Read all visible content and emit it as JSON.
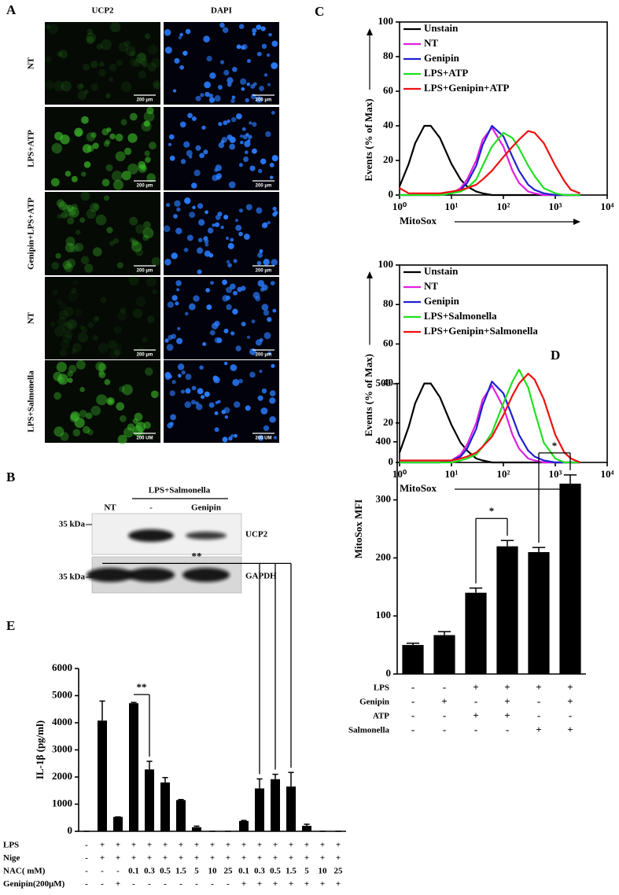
{
  "panel_a": {
    "label": "A",
    "columns": [
      "UCP2",
      "DAPI"
    ],
    "rows": [
      {
        "name": "NT",
        "scale": [
          "200 μm",
          "200 μm"
        ]
      },
      {
        "name": "LPS+ATP",
        "scale": [
          "200 μm",
          "200 μm"
        ]
      },
      {
        "name": "Genipin+LPS+ATP",
        "scale": [
          "200 μm",
          "200 μm"
        ]
      },
      {
        "name": "NT",
        "scale": [
          "200 μm",
          "200 μm"
        ]
      },
      {
        "name": "LPS+Salmonella",
        "scale": [
          "200 UM",
          "200 UM"
        ]
      }
    ]
  },
  "panel_b": {
    "label": "B",
    "group": "LPS+Salmonella",
    "lanes": [
      "NT",
      "-",
      "Genipin"
    ],
    "bands": [
      {
        "marker": "35 kDa",
        "name": "UCP2"
      },
      {
        "marker": "35 kDa",
        "name": "GAPDH"
      }
    ]
  },
  "chart_data": [
    {
      "type": "line",
      "label": "C",
      "xlabel": "MitoSox",
      "ylabel": "Events (% of Max)",
      "log_x": true,
      "legend": "upper left",
      "xlim": [
        1,
        10000
      ],
      "xticks": [
        {
          "value": 1,
          "label": "10⁰"
        },
        {
          "value": 10,
          "label": "10¹"
        },
        {
          "value": 100,
          "label": "10²"
        },
        {
          "value": 1000,
          "label": "10³"
        },
        {
          "value": 10000,
          "label": "10⁴"
        }
      ],
      "ylim": [
        0,
        100
      ],
      "yticks": [
        0,
        20,
        40,
        60,
        80,
        100
      ],
      "x": [
        1,
        1.5,
        2,
        3,
        4,
        6,
        10,
        15,
        20,
        30,
        40,
        60,
        100,
        150,
        200,
        300,
        400,
        600,
        1000,
        1500,
        2000,
        3000
      ],
      "series": [
        {
          "name": "Unstain",
          "color": "#000000",
          "values": [
            5,
            18,
            30,
            40,
            40,
            33,
            18,
            9,
            5,
            2,
            1,
            0,
            0,
            0,
            0,
            0,
            0,
            0,
            0,
            0,
            0,
            0
          ]
        },
        {
          "name": "NT",
          "color": "#e020e0",
          "values": [
            0,
            0,
            0,
            0,
            0,
            0,
            1,
            4,
            9,
            20,
            32,
            39,
            28,
            14,
            7,
            2,
            1,
            0,
            0,
            0,
            0,
            0
          ]
        },
        {
          "name": "Genipin",
          "color": "#2020d0",
          "values": [
            0,
            0,
            0,
            0,
            0,
            0,
            1,
            3,
            7,
            17,
            29,
            40,
            34,
            22,
            14,
            6,
            3,
            1,
            0,
            0,
            0,
            0
          ]
        },
        {
          "name": "LPS+ATP",
          "color": "#20e020",
          "values": [
            0,
            0,
            0,
            0,
            0,
            0,
            1,
            2,
            4,
            9,
            17,
            28,
            36,
            33,
            27,
            17,
            11,
            4,
            1,
            0,
            0,
            0
          ]
        },
        {
          "name": "LPS+Genipin+ATP",
          "color": "#ee1010",
          "values": [
            4,
            1,
            1,
            1,
            1,
            1,
            2,
            3,
            4,
            6,
            9,
            14,
            22,
            28,
            32,
            37,
            36,
            30,
            17,
            8,
            3,
            1
          ]
        }
      ]
    },
    {
      "type": "line",
      "xlabel": "MitoSox",
      "ylabel": "Events (% of Max)",
      "log_x": true,
      "legend": "upper left",
      "xlim": [
        1,
        10000
      ],
      "xticks": [
        {
          "value": 1,
          "label": "10⁰"
        },
        {
          "value": 10,
          "label": "10¹"
        },
        {
          "value": 100,
          "label": "10²"
        },
        {
          "value": 1000,
          "label": "10³"
        },
        {
          "value": 10000,
          "label": "10⁴"
        }
      ],
      "ylim": [
        0,
        100
      ],
      "yticks": [
        0,
        20,
        40,
        60,
        80,
        100
      ],
      "x": [
        1,
        1.5,
        2,
        3,
        4,
        6,
        10,
        15,
        20,
        30,
        40,
        60,
        100,
        150,
        200,
        300,
        400,
        600,
        1000,
        1500,
        2000,
        3000
      ],
      "series": [
        {
          "name": "Unstain",
          "color": "#000000",
          "values": [
            5,
            18,
            30,
            40,
            40,
            33,
            19,
            10,
            6,
            2,
            1,
            0,
            0,
            0,
            0,
            0,
            0,
            0,
            0,
            0,
            0,
            0
          ]
        },
        {
          "name": "NT",
          "color": "#e020e0",
          "values": [
            0,
            0,
            0,
            0,
            0,
            0,
            1,
            4,
            9,
            20,
            32,
            39,
            28,
            14,
            7,
            2,
            1,
            0,
            0,
            0,
            0,
            0
          ]
        },
        {
          "name": "Genipin",
          "color": "#2020d0",
          "values": [
            0,
            0,
            0,
            0,
            0,
            0,
            1,
            3,
            7,
            17,
            29,
            41,
            35,
            23,
            14,
            6,
            3,
            1,
            0,
            0,
            0,
            0
          ]
        },
        {
          "name": "LPS+Salmonella",
          "color": "#20e020",
          "values": [
            0,
            0,
            0,
            0,
            0,
            0,
            0,
            1,
            2,
            4,
            8,
            15,
            30,
            41,
            47,
            38,
            26,
            10,
            2,
            0,
            0,
            0
          ]
        },
        {
          "name": "LPS+Genipin+Salmonella",
          "color": "#ee1010",
          "values": [
            1,
            1,
            1,
            1,
            1,
            1,
            1,
            2,
            3,
            5,
            8,
            13,
            24,
            34,
            40,
            45,
            42,
            32,
            14,
            5,
            2,
            0
          ]
        }
      ]
    },
    {
      "type": "bar",
      "label": "D",
      "ylabel": "MitoSox MFI",
      "color": "#000000",
      "ylim": [
        0,
        500
      ],
      "yticks": [
        0,
        100,
        200,
        300,
        400,
        500
      ],
      "values": [
        50,
        67,
        140,
        220,
        210,
        328
      ],
      "errors": [
        3,
        6,
        8,
        10,
        8,
        15
      ],
      "conditions": [
        {
          "name": "LPS",
          "values": [
            "-",
            "-",
            "+",
            "+",
            "+",
            "+"
          ]
        },
        {
          "name": "Genipin",
          "values": [
            "-",
            "+",
            "-",
            "+",
            "-",
            "+"
          ]
        },
        {
          "name": "ATP",
          "values": [
            "-",
            "-",
            "+",
            "+",
            "-",
            "-"
          ]
        },
        {
          "name": "Salmonella",
          "values": [
            "-",
            "-",
            "-",
            "-",
            "+",
            "+"
          ]
        }
      ],
      "annotations": [
        {
          "text": "*",
          "from": 2,
          "to": [
            3
          ]
        },
        {
          "text": "*",
          "from": 4,
          "to": [
            5
          ]
        }
      ]
    },
    {
      "type": "bar",
      "label": "E",
      "ylabel": "IL-1β (pg/ml)",
      "color": "#000000",
      "ylim": [
        0,
        6000
      ],
      "yticks": [
        0,
        1000,
        2000,
        3000,
        4000,
        5000,
        6000
      ],
      "values": [
        0,
        4080,
        530,
        4720,
        2280,
        1800,
        1150,
        150,
        0,
        0,
        380,
        1580,
        1920,
        1650,
        200,
        0,
        0
      ],
      "errors": [
        0,
        720,
        0,
        30,
        300,
        180,
        20,
        40,
        0,
        0,
        20,
        350,
        180,
        520,
        60,
        0,
        0
      ],
      "conditions": [
        {
          "name": "LPS",
          "values": [
            "-",
            "+",
            "+",
            "+",
            "+",
            "+",
            "+",
            "+",
            "+",
            "+",
            "+",
            "+",
            "+",
            "+",
            "+",
            "+",
            "+"
          ]
        },
        {
          "name": "Nige",
          "values": [
            "-",
            "+",
            "+",
            "+",
            "+",
            "+",
            "+",
            "+",
            "+",
            "+",
            "+",
            "+",
            "+",
            "+",
            "+",
            "+",
            "+"
          ]
        },
        {
          "name": "NAC( mM)",
          "values": [
            "-",
            "-",
            "-",
            "0.1",
            "0.3",
            "0.5",
            "1.5",
            "5",
            "10",
            "25",
            "0.1",
            "0.3",
            "0.5",
            "1.5",
            "5",
            "10",
            "25"
          ]
        },
        {
          "name": "Genipin(200μM)",
          "values": [
            "-",
            "-",
            "+",
            "-",
            "-",
            "-",
            "-",
            "-",
            "-",
            "-",
            "+",
            "+",
            "+",
            "+",
            "+",
            "+",
            "+"
          ]
        }
      ],
      "annotations": [
        {
          "text": "**",
          "from": 1,
          "to": [
            11,
            12,
            13
          ]
        },
        {
          "text": "**",
          "from": 3,
          "to": [
            4
          ]
        }
      ]
    }
  ]
}
